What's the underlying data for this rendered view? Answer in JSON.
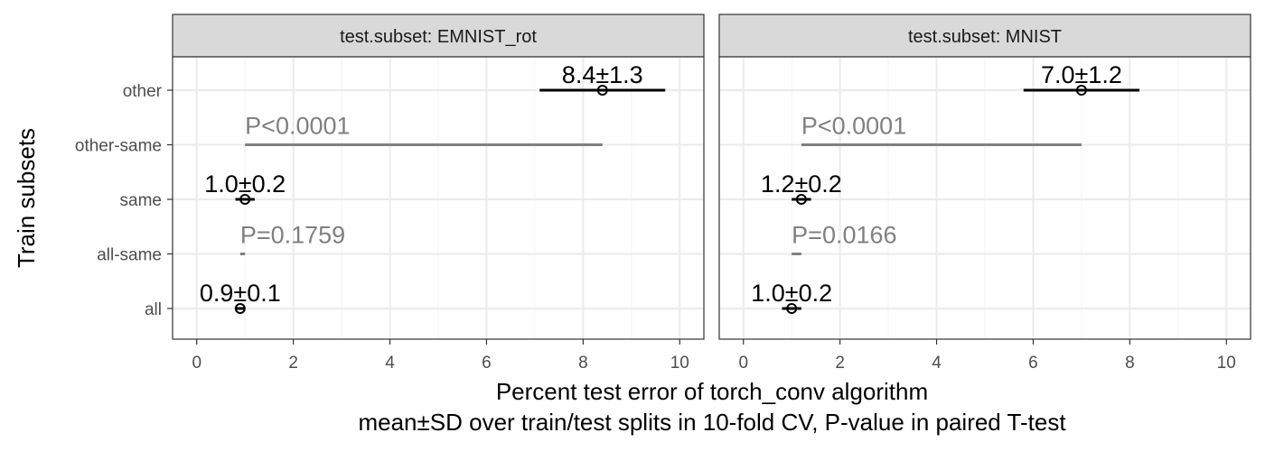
{
  "chart_data": {
    "type": "scatter",
    "facet_label": "test.subset",
    "facets": [
      {
        "subset": "EMNIST_rot",
        "points": [
          {
            "category": "other",
            "mean": 8.4,
            "sd": 1.3,
            "label": "8.4±1.3"
          },
          {
            "category": "same",
            "mean": 1.0,
            "sd": 0.2,
            "label": "1.0±0.2"
          },
          {
            "category": "all",
            "mean": 0.9,
            "sd": 0.1,
            "label": "0.9±0.1"
          }
        ],
        "pvalues": [
          {
            "category": "other-same",
            "from": 1.0,
            "to": 8.4,
            "label": "P<0.0001"
          },
          {
            "category": "all-same",
            "from": 0.9,
            "to": 1.0,
            "label": "P=0.1759"
          }
        ]
      },
      {
        "subset": "MNIST",
        "points": [
          {
            "category": "other",
            "mean": 7.0,
            "sd": 1.2,
            "label": "7.0±1.2"
          },
          {
            "category": "same",
            "mean": 1.2,
            "sd": 0.2,
            "label": "1.2±0.2"
          },
          {
            "category": "all",
            "mean": 1.0,
            "sd": 0.2,
            "label": "1.0±0.2"
          }
        ],
        "pvalues": [
          {
            "category": "other-same",
            "from": 1.2,
            "to": 7.0,
            "label": "P<0.0001"
          },
          {
            "category": "all-same",
            "from": 1.0,
            "to": 1.2,
            "label": "P=0.0166"
          }
        ]
      }
    ],
    "categories": [
      "other",
      "other-same",
      "same",
      "all-same",
      "all"
    ],
    "ylabel": "Train subsets",
    "xlabel_line1": "Percent test error of torch_conv algorithm",
    "xlabel_line2": "mean±SD over train/test splits in 10-fold CV, P-value in paired T-test",
    "xlim": [
      -0.5,
      10.5
    ],
    "xticks": [
      0,
      2,
      4,
      6,
      8,
      10
    ],
    "grid": true,
    "colors": {
      "points": "#000000",
      "pvalue": "#808080",
      "grid": "#ebebeb",
      "strip": "#d9d9d9",
      "border": "#333333"
    }
  }
}
